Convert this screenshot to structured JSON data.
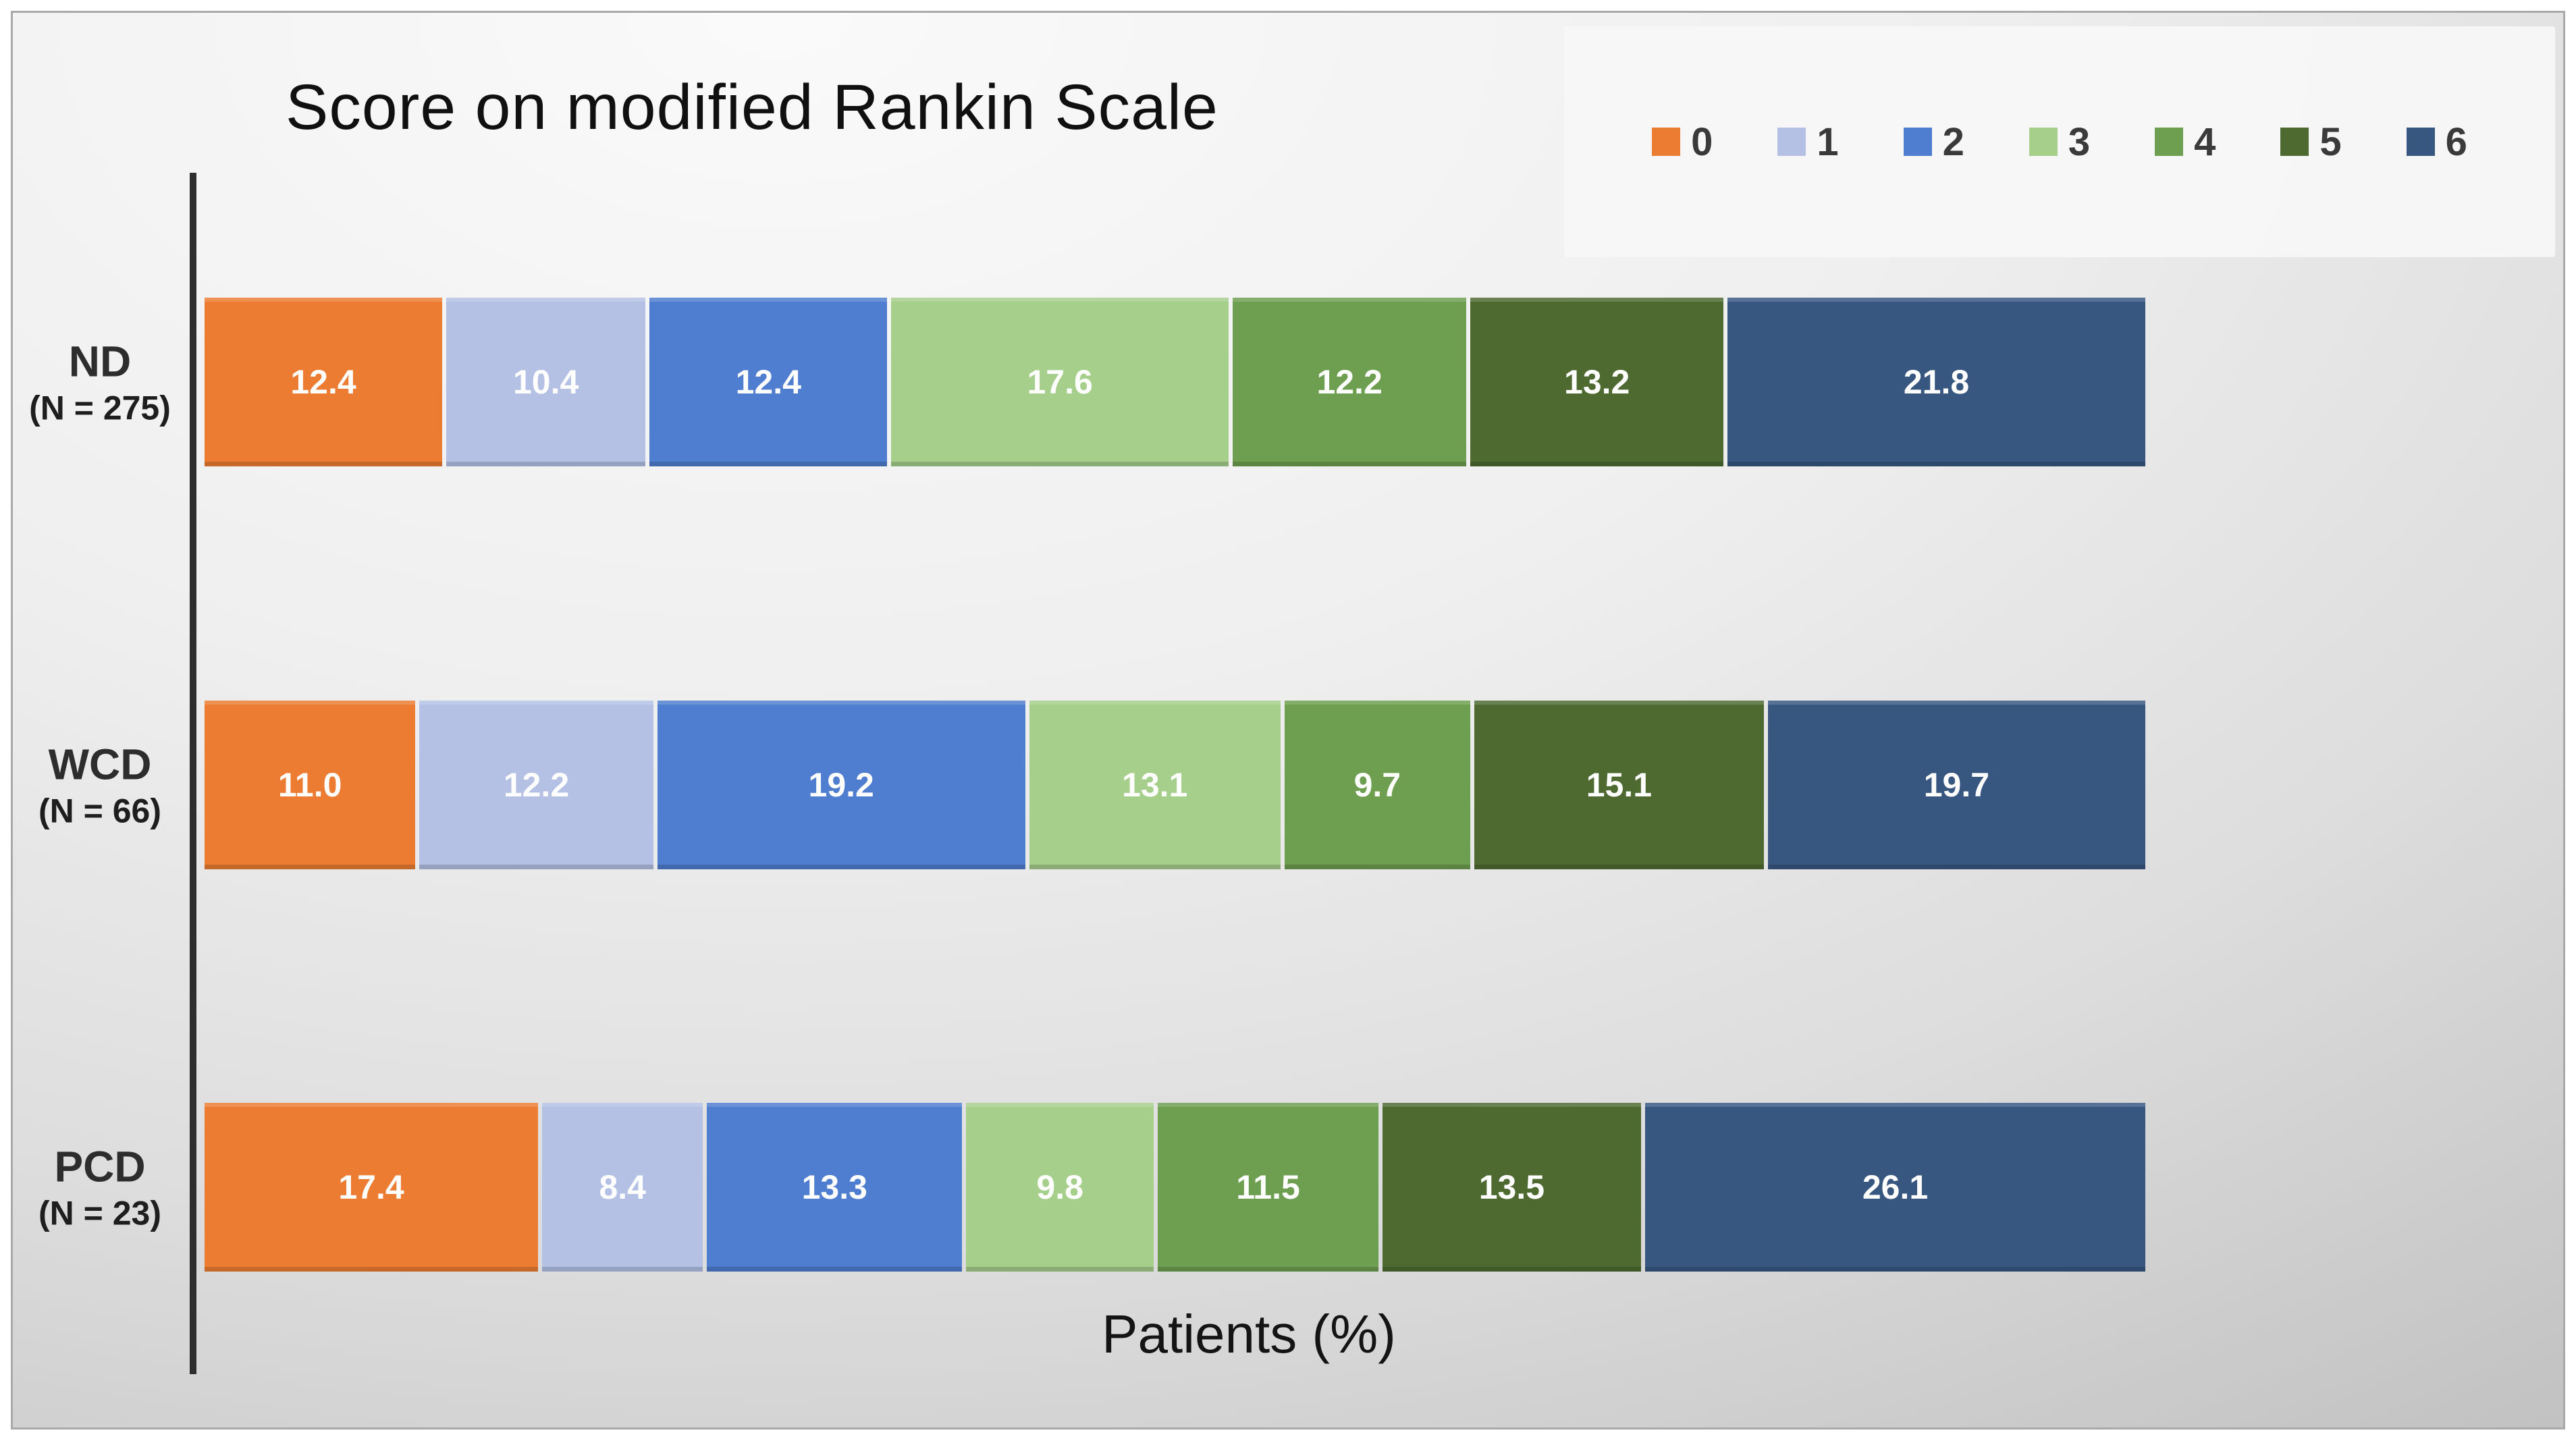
{
  "chart_data": {
    "type": "bar",
    "orientation": "horizontal",
    "stacked": true,
    "title": "Score on modified Rankin Scale",
    "xlabel": "Patients (%)",
    "xlim": [
      0,
      100
    ],
    "grid": false,
    "legend_position": "top-right",
    "value_labels": "inside-white-bold",
    "categories": [
      {
        "label": "ND",
        "n": "(N = 275)"
      },
      {
        "label": "WCD",
        "n": "(N = 66)"
      },
      {
        "label": "PCD",
        "n": "(N = 23)"
      }
    ],
    "series": [
      {
        "name": "0",
        "color": "#EC7C31",
        "values": [
          12.4,
          11.0,
          17.4
        ]
      },
      {
        "name": "1",
        "color": "#B4C1E5",
        "values": [
          10.4,
          12.2,
          8.4
        ]
      },
      {
        "name": "2",
        "color": "#4F7ED0",
        "values": [
          12.4,
          19.2,
          13.3
        ]
      },
      {
        "name": "3",
        "color": "#A6CF8C",
        "values": [
          17.6,
          13.1,
          9.8
        ]
      },
      {
        "name": "4",
        "color": "#6E9E50",
        "values": [
          12.2,
          9.7,
          11.5
        ]
      },
      {
        "name": "5",
        "color": "#4E6A30",
        "values": [
          13.2,
          15.1,
          13.5
        ]
      },
      {
        "name": "6",
        "color": "#375781",
        "values": [
          21.8,
          19.7,
          26.1
        ]
      }
    ],
    "axis_line_color": "#2e2e2e"
  }
}
